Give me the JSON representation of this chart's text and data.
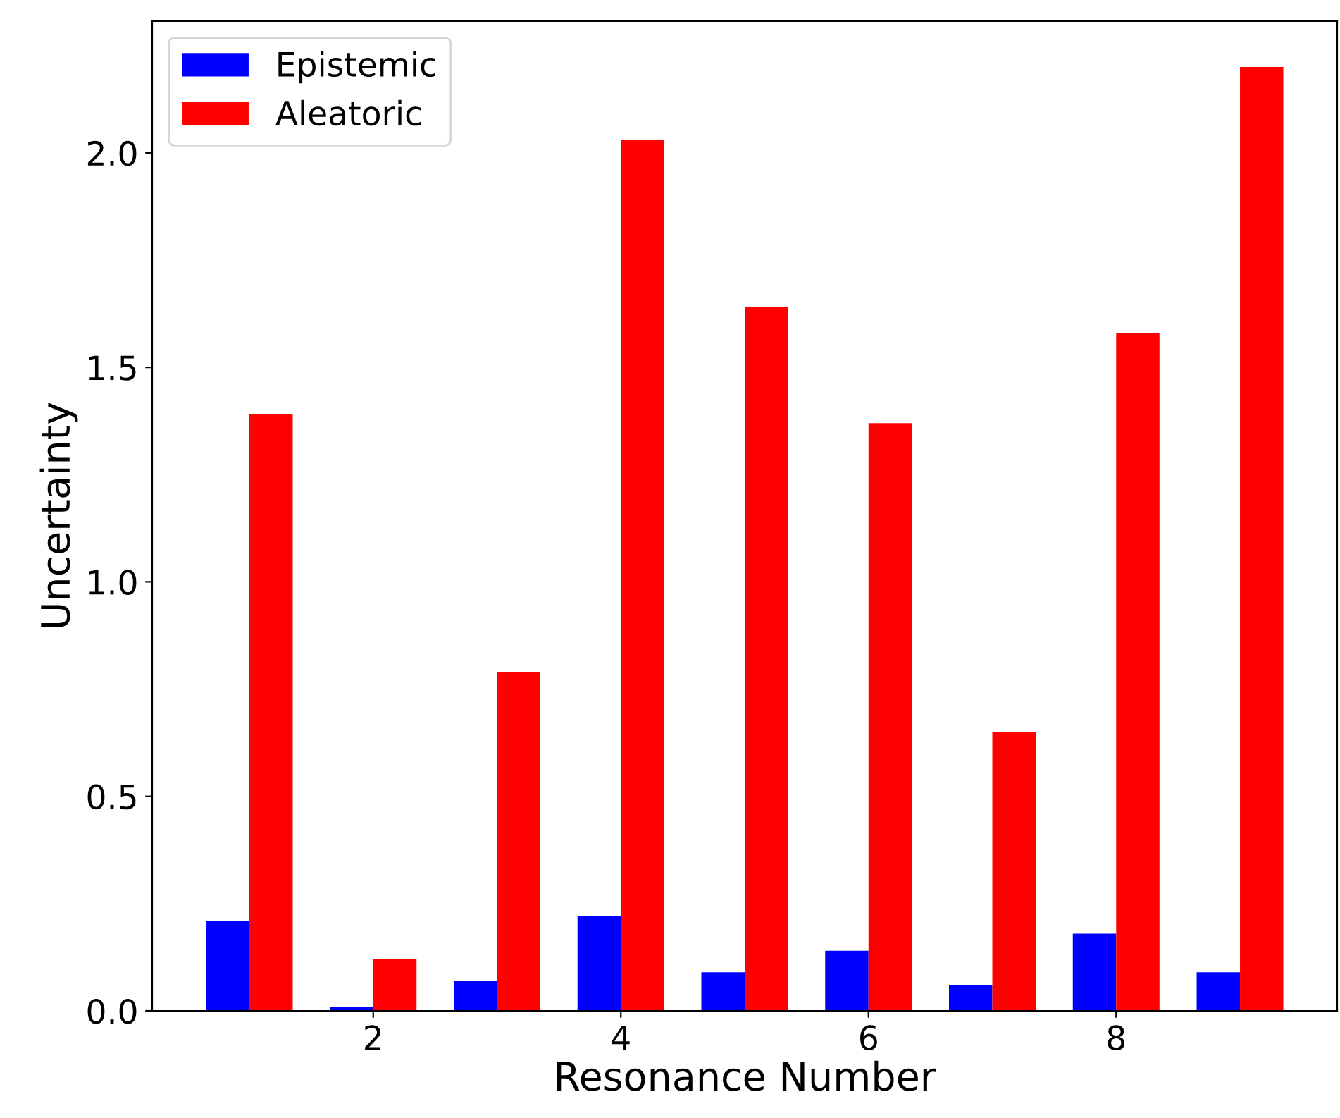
{
  "chart_data": {
    "type": "bar",
    "xlabel": "Resonance Number",
    "ylabel": "Uncertainty",
    "x": [
      1,
      2,
      3,
      4,
      5,
      6,
      7,
      8,
      9
    ],
    "series": [
      {
        "name": "Epistemic",
        "color": "#0000ff",
        "values": [
          0.21,
          0.01,
          0.07,
          0.22,
          0.09,
          0.14,
          0.06,
          0.18,
          0.09
        ]
      },
      {
        "name": "Aleatoric",
        "color": "#ff0000",
        "values": [
          1.39,
          0.12,
          0.79,
          2.03,
          1.64,
          1.37,
          0.65,
          1.58,
          2.2
        ]
      }
    ],
    "xlim": [
      0.215,
      9.785
    ],
    "xticks": [
      2,
      4,
      6,
      8
    ],
    "ylim": [
      0,
      2.307
    ],
    "yticks": [
      {
        "value": 0,
        "label": "0.0"
      },
      0.5,
      {
        "value": 1,
        "label": "1.0"
      },
      1.5,
      {
        "value": 2,
        "label": "2.0"
      }
    ],
    "legend": "top left",
    "grid": false
  }
}
